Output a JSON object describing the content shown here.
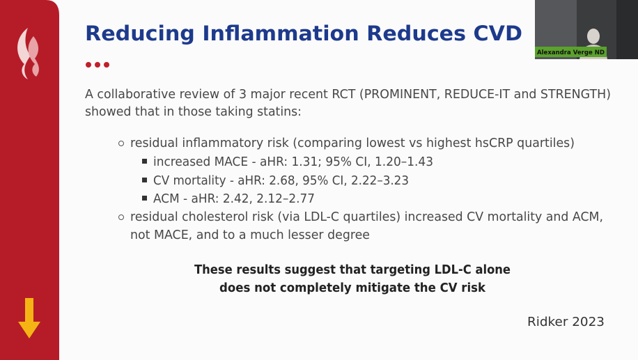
{
  "slide": {
    "title": "Reducing Inflammation Reduces CVD",
    "intro": [
      "A collaborative review of 3 major recent RCT (PROMINENT, REDUCE-IT and STRENGTH)",
      "showed that in those taking statins:"
    ],
    "bullets": [
      {
        "lines": [
          "residual inflammatory risk (comparing lowest vs highest hsCRP quartiles)"
        ],
        "subitems": [
          "increased MACE - aHR: 1.31; 95% CI, 1.20–1.43",
          "CV mortality - aHR: 2.68, 95% CI, 2.22–3.23",
          "ACM - aHR: 2.42, 2.12–2.77"
        ]
      },
      {
        "lines": [
          "residual cholesterol risk (via LDL-C quartiles) increased CV mortality and ACM,",
          "not MACE, and to a much lesser degree"
        ]
      }
    ],
    "conclusion": [
      "These results suggest that targeting LDL-C alone",
      "does not completely mitigate the CV risk"
    ],
    "citation": "Ridker 2023",
    "video": {
      "name": "Alexandra Verge ND"
    }
  }
}
